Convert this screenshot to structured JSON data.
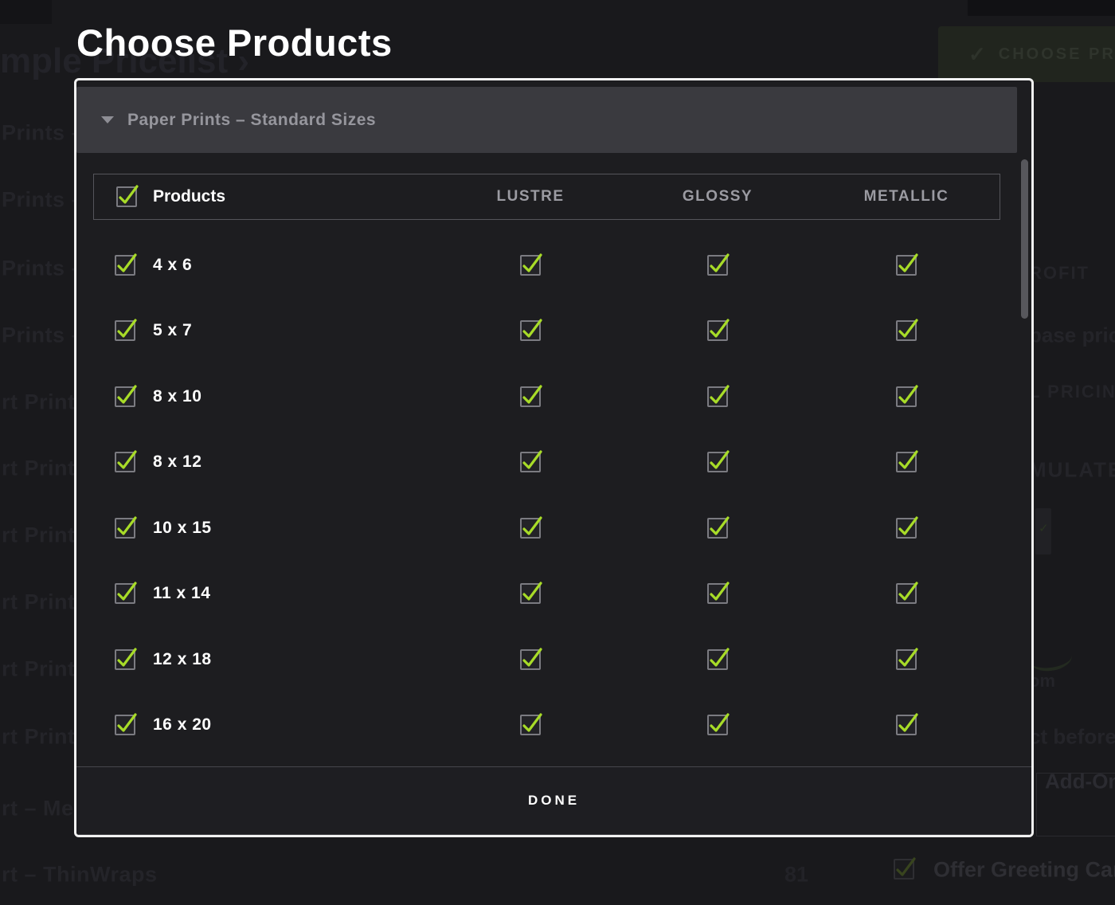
{
  "colors": {
    "accent_green": "#a8dc28",
    "modal_background": "#1d1d20",
    "accordion_background": "#3a3a3f"
  },
  "modal": {
    "title": "Choose Products",
    "accordion_label": "Paper Prints – Standard Sizes",
    "table": {
      "products_header": "Products",
      "products_checked": true,
      "columns": [
        "LUSTRE",
        "GLOSSY",
        "METALLIC"
      ],
      "rows": [
        {
          "label": "4 x 6",
          "checked": true,
          "cells": [
            true,
            true,
            true
          ]
        },
        {
          "label": "5 x 7",
          "checked": true,
          "cells": [
            true,
            true,
            true
          ]
        },
        {
          "label": "8 x 10",
          "checked": true,
          "cells": [
            true,
            true,
            true
          ]
        },
        {
          "label": "8 x 12",
          "checked": true,
          "cells": [
            true,
            true,
            true
          ]
        },
        {
          "label": "10 x 15",
          "checked": true,
          "cells": [
            true,
            true,
            true
          ]
        },
        {
          "label": "11 x 14",
          "checked": true,
          "cells": [
            true,
            true,
            true
          ]
        },
        {
          "label": "12 x 18",
          "checked": true,
          "cells": [
            true,
            true,
            true
          ]
        },
        {
          "label": "16 x 20",
          "checked": true,
          "cells": [
            true,
            true,
            true
          ]
        }
      ]
    },
    "done_label": "DONE"
  },
  "background": {
    "breadcrumb_fragment": "mple Pricelist ›",
    "choose_button_label": "CHOOSE PRO",
    "choose_button_check": "✓",
    "left_items": [
      "Prints – S",
      "Prints – G",
      "Prints –",
      "Prints – S",
      "rt Prints –",
      "rt Prints –",
      "rt Prints –",
      "rt Prints –",
      "rt Prints –",
      "rt Prints",
      "rt – Met",
      "rt – ThinWraps"
    ],
    "right_fragments": [
      "ROFIT",
      "base price",
      "L PRICING",
      "MULATED",
      "om",
      "ct before"
    ],
    "addons_label": "Add-Ons",
    "greeting_label": "Offer Greeting Cards",
    "page_number": "81"
  }
}
